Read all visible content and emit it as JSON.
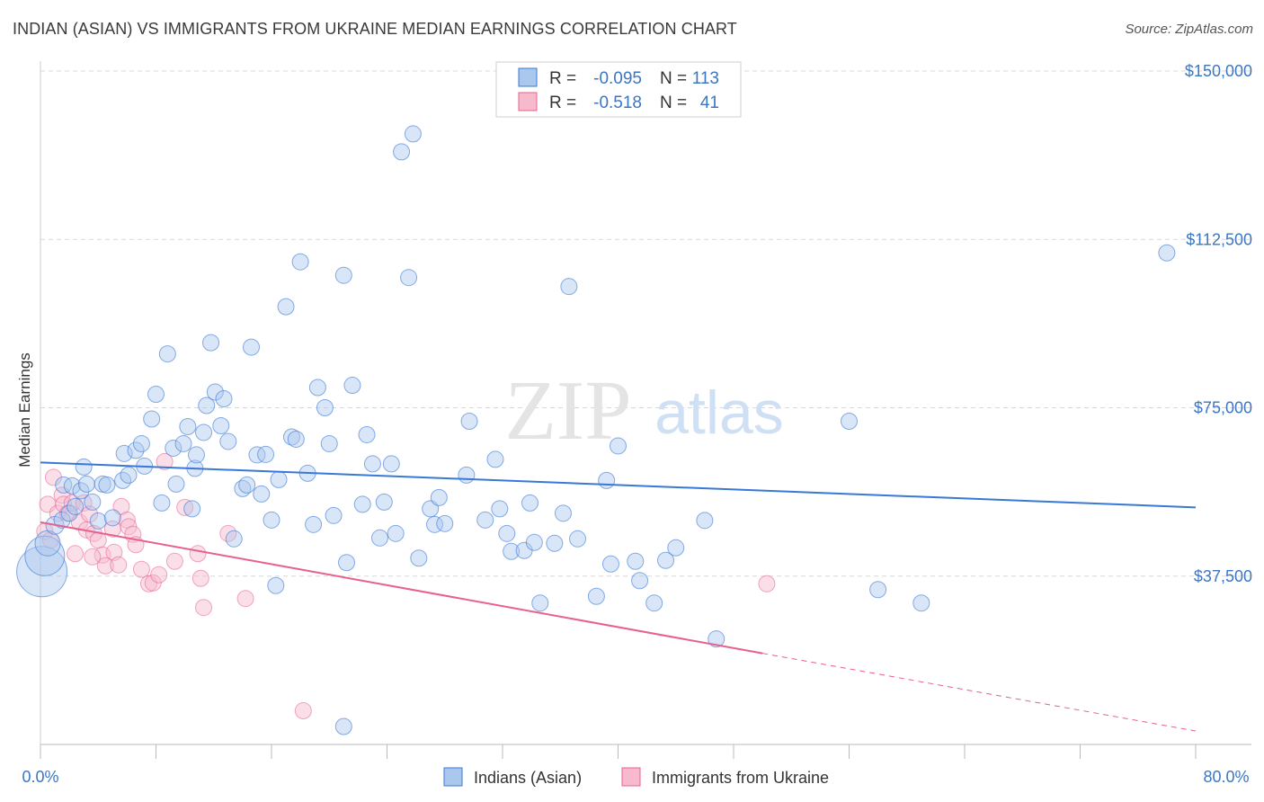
{
  "title": "INDIAN (ASIAN) VS IMMIGRANTS FROM UKRAINE MEDIAN EARNINGS CORRELATION CHART",
  "source": "Source: ZipAtlas.com",
  "watermark": {
    "zip": "ZIP",
    "atlas": "atlas"
  },
  "colors": {
    "blue": "#3a78d6",
    "blue_fill": "#aac8ee",
    "pink": "#e8608f",
    "pink_fill": "#f7b9cc",
    "grid": "#d8d8d8",
    "axis_text": "#3b76c4"
  },
  "legend": {
    "rows": [
      {
        "r_label": "R =",
        "r_value": "-0.095",
        "n_label": "N =",
        "n_value": "113",
        "color": "#3a78d6"
      },
      {
        "r_label": "R =",
        "r_value": "-0.518",
        "n_label": "N =",
        "n_value": "41",
        "color": "#e8608f"
      }
    ]
  },
  "chart_data": {
    "type": "scatter",
    "title": "INDIAN (ASIAN) VS IMMIGRANTS FROM UKRAINE MEDIAN EARNINGS CORRELATION CHART",
    "xlabel": "",
    "ylabel": "Median Earnings",
    "xlim": [
      0,
      80
    ],
    "ylim": [
      0,
      150000
    ],
    "x_tick_labels": [
      "0.0%",
      "80.0%"
    ],
    "y_ticks": [
      37500,
      75000,
      112500,
      150000
    ],
    "y_tick_labels": [
      "$37,500",
      "$75,000",
      "$112,500",
      "$150,000"
    ],
    "series": [
      {
        "name": "Indians (Asian)",
        "color": "#3a78d6",
        "trend": {
          "x": [
            0,
            80
          ],
          "y": [
            62800,
            52800
          ]
        },
        "points": [
          [
            0.1,
            38500
          ],
          [
            0.3,
            42000
          ],
          [
            0.5,
            44800
          ],
          [
            1.0,
            48800
          ],
          [
            1.5,
            50000
          ],
          [
            1.6,
            57800
          ],
          [
            2.0,
            51500
          ],
          [
            2.2,
            57600
          ],
          [
            2.4,
            53000
          ],
          [
            2.8,
            56500
          ],
          [
            3.0,
            61800
          ],
          [
            3.2,
            58000
          ],
          [
            3.6,
            54000
          ],
          [
            4.0,
            49800
          ],
          [
            4.3,
            58000
          ],
          [
            4.6,
            57800
          ],
          [
            5.0,
            50500
          ],
          [
            5.7,
            58800
          ],
          [
            5.8,
            64800
          ],
          [
            6.1,
            60000
          ],
          [
            6.6,
            65500
          ],
          [
            7.0,
            67000
          ],
          [
            7.2,
            62000
          ],
          [
            7.7,
            72500
          ],
          [
            8.0,
            78000
          ],
          [
            8.4,
            53800
          ],
          [
            8.8,
            87000
          ],
          [
            9.2,
            66000
          ],
          [
            9.4,
            58000
          ],
          [
            9.9,
            67000
          ],
          [
            10.2,
            70800
          ],
          [
            10.5,
            52500
          ],
          [
            10.7,
            61500
          ],
          [
            10.8,
            64500
          ],
          [
            11.3,
            69500
          ],
          [
            11.5,
            75500
          ],
          [
            11.8,
            89500
          ],
          [
            12.1,
            78500
          ],
          [
            12.5,
            71000
          ],
          [
            12.7,
            77000
          ],
          [
            13.0,
            67500
          ],
          [
            13.4,
            45800
          ],
          [
            14.0,
            57000
          ],
          [
            14.3,
            57800
          ],
          [
            14.6,
            88500
          ],
          [
            15.0,
            64500
          ],
          [
            15.3,
            55800
          ],
          [
            15.6,
            64600
          ],
          [
            16.0,
            50000
          ],
          [
            16.3,
            35400
          ],
          [
            16.5,
            59000
          ],
          [
            17.0,
            97500
          ],
          [
            17.4,
            68500
          ],
          [
            17.7,
            68000
          ],
          [
            18.0,
            107500
          ],
          [
            18.5,
            60400
          ],
          [
            18.9,
            49000
          ],
          [
            19.2,
            79500
          ],
          [
            19.7,
            75000
          ],
          [
            20.0,
            67000
          ],
          [
            20.3,
            51000
          ],
          [
            21.0,
            104500
          ],
          [
            21.2,
            40500
          ],
          [
            21.6,
            80000
          ],
          [
            22.3,
            53500
          ],
          [
            22.6,
            69000
          ],
          [
            23.0,
            62500
          ],
          [
            23.5,
            46000
          ],
          [
            23.8,
            54000
          ],
          [
            24.3,
            62500
          ],
          [
            24.6,
            47000
          ],
          [
            25.0,
            132000
          ],
          [
            25.5,
            104000
          ],
          [
            25.8,
            136000
          ],
          [
            26.2,
            41500
          ],
          [
            27.0,
            52500
          ],
          [
            27.3,
            49000
          ],
          [
            27.6,
            55000
          ],
          [
            28.0,
            49200
          ],
          [
            29.5,
            60000
          ],
          [
            29.7,
            72000
          ],
          [
            30.8,
            50000
          ],
          [
            31.5,
            63500
          ],
          [
            31.8,
            52500
          ],
          [
            32.3,
            47000
          ],
          [
            32.6,
            43000
          ],
          [
            33.5,
            43200
          ],
          [
            33.9,
            53800
          ],
          [
            34.2,
            45000
          ],
          [
            34.6,
            31500
          ],
          [
            35.6,
            44800
          ],
          [
            36.2,
            51500
          ],
          [
            36.6,
            102000
          ],
          [
            37.2,
            45800
          ],
          [
            38.5,
            33000
          ],
          [
            39.2,
            58800
          ],
          [
            39.5,
            40200
          ],
          [
            40.0,
            66500
          ],
          [
            41.2,
            40800
          ],
          [
            41.5,
            36500
          ],
          [
            42.5,
            31500
          ],
          [
            43.3,
            41000
          ],
          [
            44.0,
            43800
          ],
          [
            46.0,
            49900
          ],
          [
            46.8,
            23500
          ],
          [
            56.0,
            72000
          ],
          [
            58.0,
            34500
          ],
          [
            61.0,
            31500
          ],
          [
            78.0,
            109500
          ],
          [
            21.0,
            4000
          ]
        ],
        "point_sizes": [
          30,
          24,
          16,
          12,
          11,
          11,
          11,
          11,
          11,
          11,
          11,
          11,
          11,
          11,
          11,
          11,
          11,
          11,
          11,
          11,
          11,
          11,
          11,
          11,
          11,
          11,
          11,
          11,
          11,
          11,
          11,
          11,
          11,
          11,
          11,
          11,
          11,
          11,
          11,
          11,
          11,
          11,
          11,
          11,
          11,
          11,
          11,
          11,
          11,
          11,
          11,
          11,
          11,
          11,
          11,
          11,
          11,
          11,
          11,
          11,
          11,
          11,
          11,
          11,
          11,
          11,
          11,
          11,
          11,
          11,
          11,
          11,
          11,
          11,
          11,
          11,
          11,
          11,
          11,
          11,
          11,
          11,
          11,
          11,
          11,
          11,
          11,
          11,
          11,
          11,
          11,
          11,
          11,
          11,
          11,
          11,
          11,
          11,
          11,
          11,
          11,
          11,
          11,
          11,
          11,
          11,
          11,
          11,
          11,
          11
        ]
      },
      {
        "name": "Immigrants from Ukraine",
        "color": "#e8608f",
        "trend": {
          "x": [
            0,
            50
          ],
          "y": [
            49500,
            20300
          ]
        },
        "trend_dashed": {
          "x": [
            50,
            80
          ],
          "y": [
            20300,
            3000
          ]
        },
        "points": [
          [
            0.3,
            47500
          ],
          [
            0.5,
            53500
          ],
          [
            0.7,
            45500
          ],
          [
            0.9,
            59500
          ],
          [
            1.2,
            51500
          ],
          [
            1.5,
            55500
          ],
          [
            1.6,
            53500
          ],
          [
            1.9,
            51500
          ],
          [
            2.2,
            53800
          ],
          [
            2.4,
            42500
          ],
          [
            2.7,
            49500
          ],
          [
            3.0,
            53800
          ],
          [
            3.2,
            47800
          ],
          [
            3.4,
            51300
          ],
          [
            3.7,
            47000
          ],
          [
            4.0,
            45500
          ],
          [
            4.3,
            42200
          ],
          [
            4.5,
            39800
          ],
          [
            5.0,
            48000
          ],
          [
            5.1,
            42800
          ],
          [
            5.4,
            40000
          ],
          [
            5.6,
            53000
          ],
          [
            6.0,
            50000
          ],
          [
            6.1,
            48500
          ],
          [
            6.4,
            46800
          ],
          [
            6.6,
            44500
          ],
          [
            7.0,
            39000
          ],
          [
            7.5,
            35800
          ],
          [
            7.8,
            36000
          ],
          [
            8.2,
            37800
          ],
          [
            8.6,
            63000
          ],
          [
            9.3,
            40800
          ],
          [
            10.0,
            52800
          ],
          [
            10.9,
            42500
          ],
          [
            11.1,
            37000
          ],
          [
            11.3,
            30500
          ],
          [
            13.0,
            47000
          ],
          [
            14.2,
            32500
          ],
          [
            18.2,
            7500
          ],
          [
            50.3,
            35800
          ],
          [
            3.6,
            41800
          ]
        ]
      }
    ]
  },
  "bottom_legend": {
    "series1": "Indians (Asian)",
    "series2": "Immigrants from Ukraine"
  }
}
